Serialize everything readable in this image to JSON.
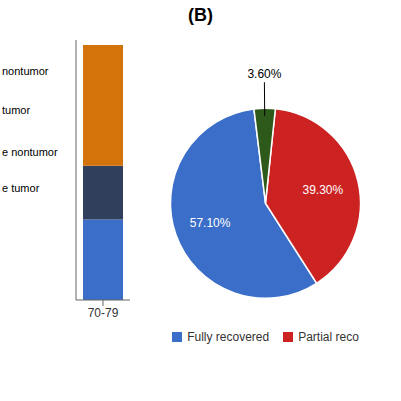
{
  "chart_data": [
    {
      "type": "bar",
      "stacked": true,
      "categories": [
        "70-79"
      ],
      "series": [
        {
          "color": "#3A6EC8",
          "values": [
            12
          ]
        },
        {
          "color": "#2F3F5C",
          "values": [
            8
          ]
        },
        {
          "color": "#D4730A",
          "values": [
            18
          ]
        }
      ],
      "ylim": [
        0,
        38.76
      ],
      "tick_labels": "x",
      "annotations": [
        "nontumor",
        "tumor",
        "e nontumor",
        "e tumor"
      ]
    },
    {
      "type": "pie",
      "title": "(B)",
      "categories": [
        "Fully recovered",
        "Partial reco",
        null
      ],
      "values": [
        57.1,
        39.3,
        3.6
      ],
      "value_labels": [
        "57.10%",
        "39.30%",
        "3.60%"
      ],
      "colors": [
        "#3A6EC8",
        "#CC2222",
        "#2D5A1B"
      ],
      "data_labels": true,
      "legend": "bottom"
    }
  ]
}
